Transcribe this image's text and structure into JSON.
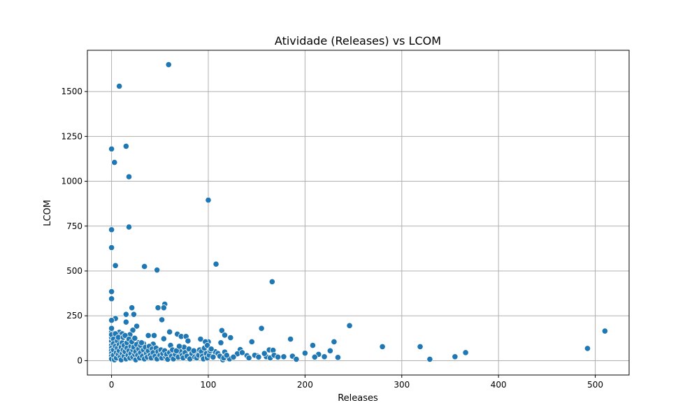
{
  "chart_data": {
    "type": "scatter",
    "title": "Atividade (Releases) vs LCOM",
    "xlabel": "Releases",
    "ylabel": "LCOM",
    "xlim": [
      -25,
      535
    ],
    "ylim": [
      -80,
      1730
    ],
    "xticks": [
      0,
      100,
      200,
      300,
      400,
      500
    ],
    "yticks": [
      0,
      250,
      500,
      750,
      1000,
      1250,
      1500
    ],
    "grid": true,
    "point_color": "#1f77b4",
    "points": [
      [
        59,
        1650
      ],
      [
        8,
        1530
      ],
      [
        15,
        1195
      ],
      [
        0,
        1180
      ],
      [
        3,
        1105
      ],
      [
        18,
        1025
      ],
      [
        100,
        895
      ],
      [
        0,
        730
      ],
      [
        18,
        745
      ],
      [
        0,
        630
      ],
      [
        4,
        530
      ],
      [
        34,
        525
      ],
      [
        108,
        538
      ],
      [
        47,
        505
      ],
      [
        166,
        440
      ],
      [
        0,
        385
      ],
      [
        0,
        345
      ],
      [
        55,
        315
      ],
      [
        48,
        295
      ],
      [
        54,
        295
      ],
      [
        21,
        295
      ],
      [
        15,
        258
      ],
      [
        23,
        258
      ],
      [
        4,
        235
      ],
      [
        0,
        225
      ],
      [
        15,
        215
      ],
      [
        52,
        228
      ],
      [
        246,
        195
      ],
      [
        26,
        192
      ],
      [
        155,
        180
      ],
      [
        22,
        170
      ],
      [
        60,
        160
      ],
      [
        114,
        168
      ],
      [
        0,
        160
      ],
      [
        8,
        158
      ],
      [
        11,
        150
      ],
      [
        68,
        148
      ],
      [
        19,
        145
      ],
      [
        117,
        142
      ],
      [
        72,
        135
      ],
      [
        77,
        135
      ],
      [
        38,
        140
      ],
      [
        44,
        140
      ],
      [
        123,
        128
      ],
      [
        92,
        120
      ],
      [
        185,
        120
      ],
      [
        54,
        122
      ],
      [
        79,
        110
      ],
      [
        100,
        105
      ],
      [
        97,
        105
      ],
      [
        145,
        105
      ],
      [
        230,
        105
      ],
      [
        113,
        100
      ],
      [
        28,
        100
      ],
      [
        33,
        95
      ],
      [
        43,
        92
      ],
      [
        208,
        85
      ],
      [
        61,
        85
      ],
      [
        20,
        90
      ],
      [
        280,
        78
      ],
      [
        319,
        78
      ],
      [
        75,
        75
      ],
      [
        133,
        62
      ],
      [
        163,
        60
      ],
      [
        167,
        58
      ],
      [
        226,
        55
      ],
      [
        107,
        50
      ],
      [
        117,
        48
      ],
      [
        71,
        50
      ],
      [
        88,
        45
      ],
      [
        366,
        45
      ],
      [
        200,
        42
      ],
      [
        492,
        68
      ],
      [
        510,
        165
      ],
      [
        214,
        35
      ],
      [
        130,
        38
      ],
      [
        140,
        28
      ],
      [
        150,
        28
      ],
      [
        170,
        25
      ],
      [
        178,
        22
      ],
      [
        187,
        25
      ],
      [
        210,
        20
      ],
      [
        220,
        22
      ],
      [
        234,
        18
      ],
      [
        355,
        22
      ],
      [
        329,
        8
      ],
      [
        191,
        8
      ],
      [
        115,
        5
      ],
      [
        122,
        10
      ],
      [
        160,
        22
      ],
      [
        0,
        110
      ],
      [
        0,
        85
      ],
      [
        0,
        70
      ],
      [
        0,
        55
      ],
      [
        0,
        40
      ],
      [
        0,
        25
      ],
      [
        0,
        10
      ],
      [
        0,
        130
      ],
      [
        0,
        145
      ],
      [
        0,
        180
      ],
      [
        2,
        120
      ],
      [
        2,
        95
      ],
      [
        2,
        60
      ],
      [
        2,
        30
      ],
      [
        3,
        5
      ],
      [
        4,
        150
      ],
      [
        4,
        80
      ],
      [
        5,
        45
      ],
      [
        5,
        15
      ],
      [
        6,
        110
      ],
      [
        6,
        70
      ],
      [
        7,
        35
      ],
      [
        7,
        130
      ],
      [
        8,
        55
      ],
      [
        8,
        90
      ],
      [
        9,
        20
      ],
      [
        10,
        75
      ],
      [
        10,
        5
      ],
      [
        11,
        100
      ],
      [
        11,
        40
      ],
      [
        12,
        130
      ],
      [
        12,
        60
      ],
      [
        13,
        25
      ],
      [
        13,
        85
      ],
      [
        14,
        140
      ],
      [
        14,
        50
      ],
      [
        15,
        10
      ],
      [
        16,
        100
      ],
      [
        16,
        70
      ],
      [
        17,
        30
      ],
      [
        18,
        120
      ],
      [
        18,
        55
      ],
      [
        19,
        15
      ],
      [
        20,
        80
      ],
      [
        20,
        40
      ],
      [
        21,
        105
      ],
      [
        22,
        60
      ],
      [
        22,
        20
      ],
      [
        23,
        75
      ],
      [
        24,
        35
      ],
      [
        24,
        125
      ],
      [
        25,
        50
      ],
      [
        25,
        5
      ],
      [
        26,
        90
      ],
      [
        27,
        30
      ],
      [
        28,
        65
      ],
      [
        29,
        15
      ],
      [
        30,
        85
      ],
      [
        30,
        45
      ],
      [
        31,
        100
      ],
      [
        32,
        25
      ],
      [
        33,
        60
      ],
      [
        34,
        10
      ],
      [
        35,
        75
      ],
      [
        36,
        40
      ],
      [
        37,
        20
      ],
      [
        38,
        55
      ],
      [
        39,
        80
      ],
      [
        40,
        30
      ],
      [
        41,
        15
      ],
      [
        42,
        65
      ],
      [
        43,
        45
      ],
      [
        45,
        25
      ],
      [
        46,
        70
      ],
      [
        47,
        10
      ],
      [
        48,
        50
      ],
      [
        50,
        30
      ],
      [
        51,
        60
      ],
      [
        52,
        15
      ],
      [
        53,
        40
      ],
      [
        55,
        55
      ],
      [
        56,
        20
      ],
      [
        57,
        35
      ],
      [
        58,
        8
      ],
      [
        60,
        45
      ],
      [
        62,
        25
      ],
      [
        63,
        60
      ],
      [
        64,
        10
      ],
      [
        66,
        35
      ],
      [
        67,
        55
      ],
      [
        69,
        20
      ],
      [
        70,
        80
      ],
      [
        73,
        30
      ],
      [
        74,
        15
      ],
      [
        76,
        45
      ],
      [
        78,
        25
      ],
      [
        80,
        65
      ],
      [
        81,
        10
      ],
      [
        83,
        40
      ],
      [
        85,
        55
      ],
      [
        86,
        20
      ],
      [
        88,
        15
      ],
      [
        90,
        30
      ],
      [
        91,
        60
      ],
      [
        93,
        50
      ],
      [
        94,
        25
      ],
      [
        95,
        10
      ],
      [
        96,
        70
      ],
      [
        98,
        40
      ],
      [
        99,
        15
      ],
      [
        99,
        85
      ],
      [
        101,
        30
      ],
      [
        102,
        55
      ],
      [
        103,
        65
      ],
      [
        105,
        20
      ],
      [
        110,
        40
      ],
      [
        112,
        25
      ],
      [
        116,
        15
      ],
      [
        119,
        30
      ],
      [
        126,
        20
      ],
      [
        135,
        45
      ],
      [
        142,
        15
      ],
      [
        148,
        30
      ],
      [
        152,
        20
      ],
      [
        158,
        40
      ],
      [
        164,
        15
      ],
      [
        168,
        30
      ],
      [
        172,
        20
      ]
    ]
  }
}
